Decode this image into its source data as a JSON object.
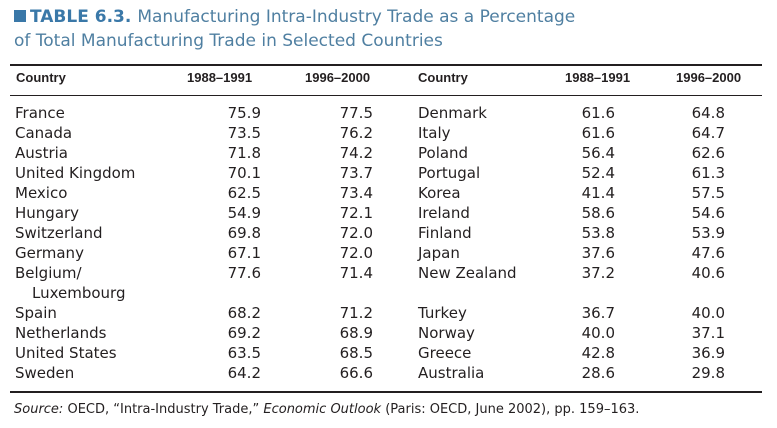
{
  "title": {
    "label": "TABLE 6.3.",
    "line1": "Manufacturing Intra-Industry Trade as a Percentage",
    "line2": "of Total Manufacturing Trade in Selected Countries"
  },
  "headers": {
    "country": "Country",
    "period1": "1988–1991",
    "period2": "1996–2000"
  },
  "left_rows": [
    {
      "country": "France",
      "v1": "75.9",
      "v2": "77.5"
    },
    {
      "country": "Canada",
      "v1": "73.5",
      "v2": "76.2"
    },
    {
      "country": "Austria",
      "v1": "71.8",
      "v2": "74.2"
    },
    {
      "country": "United Kingdom",
      "v1": "70.1",
      "v2": "73.7"
    },
    {
      "country": "Mexico",
      "v1": "62.5",
      "v2": "73.4"
    },
    {
      "country": "Hungary",
      "v1": "54.9",
      "v2": "72.1"
    },
    {
      "country": "Switzerland",
      "v1": "69.8",
      "v2": "72.0"
    },
    {
      "country": "Germany",
      "v1": "67.1",
      "v2": "72.0"
    },
    {
      "country": "Belgium/",
      "country2": "Luxembourg",
      "v1": "77.6",
      "v2": "71.4"
    },
    {
      "country": "Spain",
      "v1": "68.2",
      "v2": "71.2"
    },
    {
      "country": "Netherlands",
      "v1": "69.2",
      "v2": "68.9"
    },
    {
      "country": "United States",
      "v1": "63.5",
      "v2": "68.5"
    },
    {
      "country": "Sweden",
      "v1": "64.2",
      "v2": "66.6"
    }
  ],
  "right_rows": [
    {
      "country": "Denmark",
      "v1": "61.6",
      "v2": "64.8"
    },
    {
      "country": "Italy",
      "v1": "61.6",
      "v2": "64.7"
    },
    {
      "country": "Poland",
      "v1": "56.4",
      "v2": "62.6"
    },
    {
      "country": "Portugal",
      "v1": "52.4",
      "v2": "61.3"
    },
    {
      "country": "Korea",
      "v1": "41.4",
      "v2": "57.5"
    },
    {
      "country": "Ireland",
      "v1": "58.6",
      "v2": "54.6"
    },
    {
      "country": "Finland",
      "v1": "53.8",
      "v2": "53.9"
    },
    {
      "country": "Japan",
      "v1": "37.6",
      "v2": "47.6"
    },
    {
      "country": "New Zealand",
      "v1": "37.2",
      "v2": "40.6"
    },
    {
      "country": "",
      "v1": "",
      "v2": ""
    },
    {
      "country": "Turkey",
      "v1": "36.7",
      "v2": "40.0"
    },
    {
      "country": "Norway",
      "v1": "40.0",
      "v2": "37.1"
    },
    {
      "country": "Greece",
      "v1": "42.8",
      "v2": "36.9"
    },
    {
      "country": "Australia",
      "v1": "28.6",
      "v2": "29.8"
    }
  ],
  "source": {
    "label": "Source:",
    "part1": " OECD, “Intra-Industry Trade,” ",
    "publication": "Economic Outlook",
    "part2": " (Paris: OECD, June 2002), pp. 159–163."
  }
}
